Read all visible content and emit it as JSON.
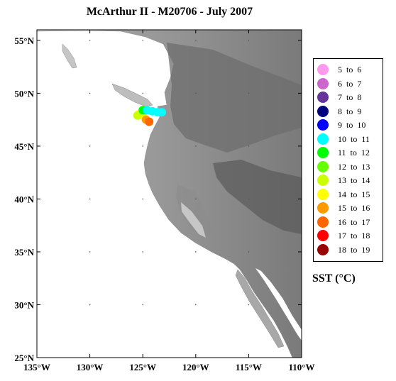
{
  "title": "McArthur II - M20706 - July 2007",
  "map": {
    "lon_range": [
      -135,
      -110
    ],
    "lat_range": [
      25,
      56
    ],
    "lat_ticks": [
      "25°N",
      "30°N",
      "35°N",
      "40°N",
      "45°N",
      "50°N",
      "55°N"
    ],
    "lon_ticks": [
      "135°W",
      "130°W",
      "125°W",
      "120°W",
      "115°W",
      "110°W"
    ],
    "ocean_color": "#ffffff",
    "land_colors": [
      "#bdbdbd",
      "#9e9e9e",
      "#7e7e7e",
      "#5f5f5f",
      "#474747"
    ],
    "track_points": [
      {
        "lon": -125.4,
        "lat": 48.0,
        "sst_range": "14 to 15"
      },
      {
        "lon": -125.0,
        "lat": 47.9,
        "sst_range": "14 to 15"
      },
      {
        "lon": -124.7,
        "lat": 47.5,
        "sst_range": "15 to 16"
      },
      {
        "lon": -124.4,
        "lat": 47.3,
        "sst_range": "16 to 17"
      },
      {
        "lon": -125.5,
        "lat": 47.9,
        "sst_range": "13 to 14"
      },
      {
        "lon": -125.0,
        "lat": 48.4,
        "sst_range": "11 to 12"
      },
      {
        "lon": -124.6,
        "lat": 48.4,
        "sst_range": "10 to 11"
      },
      {
        "lon": -124.1,
        "lat": 48.3,
        "sst_range": "10 to 11"
      },
      {
        "lon": -123.6,
        "lat": 48.2,
        "sst_range": "10 to 11"
      },
      {
        "lon": -123.2,
        "lat": 48.2,
        "sst_range": "10 to 11"
      }
    ]
  },
  "legend": {
    "items": [
      {
        "label": "5  to  6",
        "color": "#ff99ee"
      },
      {
        "label": "6  to  7",
        "color": "#cc66cc"
      },
      {
        "label": "7  to  8",
        "color": "#663399"
      },
      {
        "label": "8  to  9",
        "color": "#000080"
      },
      {
        "label": "9  to  10",
        "color": "#0000ff"
      },
      {
        "label": "10  to  11",
        "color": "#00ffff"
      },
      {
        "label": "11  to  12",
        "color": "#00ff00"
      },
      {
        "label": "12  to  13",
        "color": "#66ff00"
      },
      {
        "label": "13  to  14",
        "color": "#ccff00"
      },
      {
        "label": "14  to  15",
        "color": "#ffff00"
      },
      {
        "label": "15  to  16",
        "color": "#ff9900"
      },
      {
        "label": "16  to  17",
        "color": "#ff6600"
      },
      {
        "label": "17  to  18",
        "color": "#ff0000"
      },
      {
        "label": "18  to  19",
        "color": "#990000"
      }
    ],
    "caption": "SST (°C)"
  }
}
